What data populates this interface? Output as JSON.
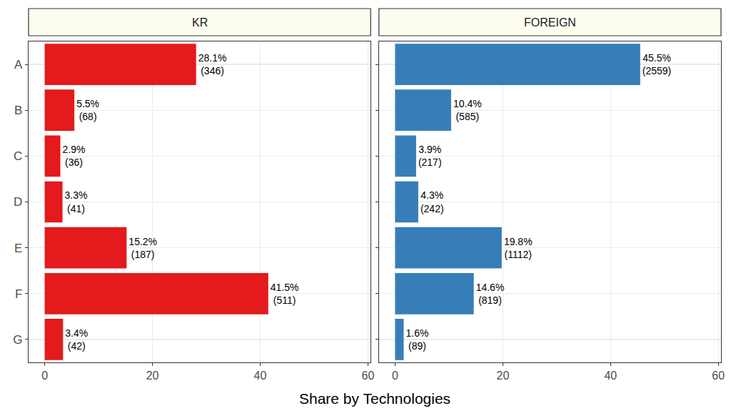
{
  "chart_data": [
    {
      "type": "bar",
      "title": "KR",
      "orientation": "horizontal",
      "categories": [
        "A",
        "B",
        "C",
        "D",
        "E",
        "F",
        "G"
      ],
      "values": [
        28.1,
        5.5,
        2.9,
        3.3,
        15.2,
        41.5,
        3.4
      ],
      "value_labels": [
        "28.1%\n(346)",
        "5.5%\n(68)",
        "2.9%\n(36)",
        "3.3%\n(41)",
        "15.2%\n(187)",
        "41.5%\n(511)",
        "3.4%\n(42)"
      ],
      "data_labels": true,
      "color": "#e41a1c",
      "xlabel": "Share by Technologies",
      "xlim": [
        -3,
        60.5
      ],
      "xticks": [
        0,
        20,
        40,
        60
      ],
      "grid": true
    },
    {
      "type": "bar",
      "title": "FOREIGN",
      "orientation": "horizontal",
      "categories": [
        "A",
        "B",
        "C",
        "D",
        "E",
        "F",
        "G"
      ],
      "values": [
        45.5,
        10.4,
        3.9,
        4.3,
        19.8,
        14.6,
        1.6
      ],
      "value_labels": [
        "45.5%\n(2559)",
        "10.4%\n(585)",
        "3.9%\n(217)",
        "4.3%\n(242)",
        "19.8%\n(1112)",
        "14.6%\n(819)",
        "1.6%\n(89)"
      ],
      "data_labels": true,
      "color": "#377eb8",
      "tick_labels": "x",
      "xlim": [
        -3,
        60.5
      ],
      "xticks": [
        0,
        20,
        40,
        60
      ],
      "grid": true
    }
  ]
}
